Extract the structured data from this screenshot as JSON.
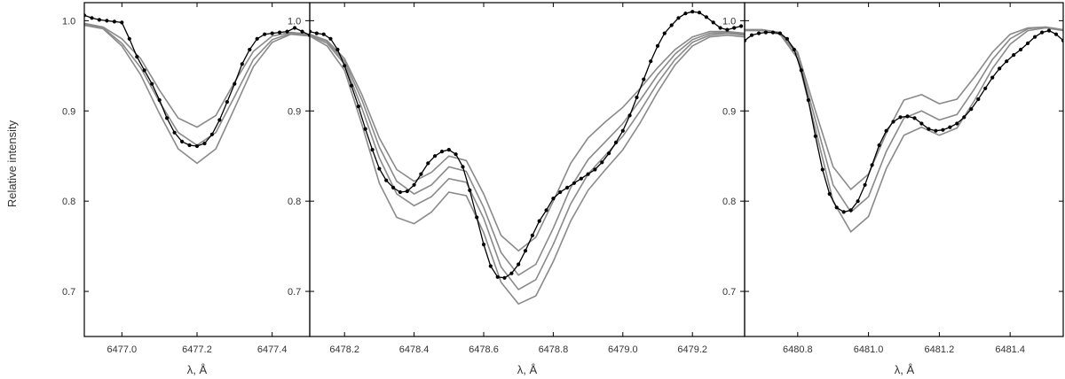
{
  "figure": {
    "ylabel": "Relative intensity",
    "colors": {
      "observed": "#000000",
      "synthetic": "#8a8a8a",
      "frame": "#000000"
    }
  },
  "chart_data": [
    {
      "type": "line",
      "panel": "left",
      "xlabel": "λ, Å",
      "ylabel": "Relative intensity",
      "xlim": [
        6476.9,
        6477.5
      ],
      "ylim": [
        0.65,
        1.02
      ],
      "xticks": [
        "6477.0",
        "6477.2",
        "6477.4"
      ],
      "yticks": [
        "0.7",
        "0.8",
        "0.9",
        "1.0"
      ],
      "series": [
        {
          "role": "observed",
          "markers": true,
          "x": [
            6476.9,
            6476.92,
            6476.94,
            6476.96,
            6476.98,
            6477.0,
            6477.02,
            6477.04,
            6477.06,
            6477.08,
            6477.1,
            6477.12,
            6477.14,
            6477.16,
            6477.18,
            6477.2,
            6477.22,
            6477.24,
            6477.26,
            6477.28,
            6477.3,
            6477.32,
            6477.34,
            6477.36,
            6477.38,
            6477.4,
            6477.42,
            6477.44,
            6477.46,
            6477.48,
            6477.5
          ],
          "y": [
            1.006,
            1.003,
            1.001,
            1.0,
            0.999,
            0.998,
            0.98,
            0.96,
            0.945,
            0.93,
            0.912,
            0.892,
            0.876,
            0.866,
            0.862,
            0.861,
            0.864,
            0.874,
            0.89,
            0.91,
            0.93,
            0.952,
            0.968,
            0.98,
            0.985,
            0.986,
            0.987,
            0.988,
            0.992,
            0.988,
            0.984
          ]
        },
        {
          "role": "synthetic",
          "x": [
            6476.9,
            6476.95,
            6477.0,
            6477.05,
            6477.1,
            6477.15,
            6477.2,
            6477.25,
            6477.3,
            6477.35,
            6477.4,
            6477.45,
            6477.5
          ],
          "y": [
            0.997,
            0.993,
            0.98,
            0.958,
            0.923,
            0.892,
            0.882,
            0.895,
            0.932,
            0.966,
            0.983,
            0.987,
            0.985
          ]
        },
        {
          "role": "synthetic",
          "x": [
            6476.9,
            6476.95,
            6477.0,
            6477.05,
            6477.1,
            6477.15,
            6477.2,
            6477.25,
            6477.3,
            6477.35,
            6477.4,
            6477.45,
            6477.5
          ],
          "y": [
            0.996,
            0.992,
            0.975,
            0.948,
            0.91,
            0.876,
            0.862,
            0.876,
            0.916,
            0.957,
            0.979,
            0.986,
            0.984
          ]
        },
        {
          "role": "synthetic",
          "x": [
            6476.9,
            6476.95,
            6477.0,
            6477.05,
            6477.1,
            6477.15,
            6477.2,
            6477.25,
            6477.3,
            6477.35,
            6477.4,
            6477.45,
            6477.5
          ],
          "y": [
            0.995,
            0.991,
            0.972,
            0.94,
            0.897,
            0.858,
            0.842,
            0.858,
            0.903,
            0.949,
            0.976,
            0.985,
            0.983
          ]
        }
      ]
    },
    {
      "type": "line",
      "panel": "middle",
      "xlabel": "λ, Å",
      "xlim": [
        6478.1,
        6479.35
      ],
      "ylim": [
        0.65,
        1.02
      ],
      "xticks": [
        "6478.2",
        "6478.4",
        "6478.6",
        "6478.8",
        "6479.0",
        "6479.2"
      ],
      "yticks": [
        "0.7",
        "0.8",
        "0.9",
        "1.0"
      ],
      "series": [
        {
          "role": "observed",
          "markers": true,
          "x": [
            6478.1,
            6478.12,
            6478.14,
            6478.16,
            6478.18,
            6478.2,
            6478.22,
            6478.24,
            6478.26,
            6478.28,
            6478.3,
            6478.32,
            6478.34,
            6478.36,
            6478.38,
            6478.4,
            6478.42,
            6478.44,
            6478.46,
            6478.48,
            6478.5,
            6478.52,
            6478.54,
            6478.56,
            6478.58,
            6478.6,
            6478.62,
            6478.64,
            6478.66,
            6478.68,
            6478.7,
            6478.72,
            6478.74,
            6478.76,
            6478.78,
            6478.8,
            6478.82,
            6478.84,
            6478.86,
            6478.88,
            6478.9,
            6478.92,
            6478.94,
            6478.96,
            6478.98,
            6479.0,
            6479.02,
            6479.04,
            6479.06,
            6479.08,
            6479.1,
            6479.12,
            6479.14,
            6479.16,
            6479.18,
            6479.2,
            6479.22,
            6479.24,
            6479.26,
            6479.28,
            6479.3,
            6479.32,
            6479.34
          ],
          "y": [
            0.988,
            0.986,
            0.985,
            0.98,
            0.968,
            0.95,
            0.928,
            0.905,
            0.88,
            0.857,
            0.836,
            0.823,
            0.815,
            0.81,
            0.811,
            0.818,
            0.83,
            0.842,
            0.85,
            0.855,
            0.857,
            0.852,
            0.838,
            0.812,
            0.782,
            0.752,
            0.728,
            0.716,
            0.715,
            0.72,
            0.73,
            0.745,
            0.762,
            0.778,
            0.79,
            0.803,
            0.81,
            0.815,
            0.82,
            0.825,
            0.83,
            0.835,
            0.843,
            0.853,
            0.865,
            0.878,
            0.895,
            0.915,
            0.935,
            0.955,
            0.972,
            0.986,
            0.995,
            1.003,
            1.008,
            1.01,
            1.009,
            1.004,
            0.998,
            0.992,
            0.99,
            0.992,
            0.994
          ]
        },
        {
          "role": "synthetic",
          "x": [
            6478.1,
            6478.15,
            6478.2,
            6478.25,
            6478.3,
            6478.35,
            6478.4,
            6478.45,
            6478.5,
            6478.55,
            6478.6,
            6478.65,
            6478.7,
            6478.75,
            6478.8,
            6478.85,
            6478.9,
            6478.95,
            6479.0,
            6479.05,
            6479.1,
            6479.15,
            6479.2,
            6479.25,
            6479.3,
            6479.35
          ],
          "y": [
            0.985,
            0.978,
            0.958,
            0.918,
            0.87,
            0.835,
            0.822,
            0.832,
            0.85,
            0.845,
            0.808,
            0.762,
            0.745,
            0.76,
            0.8,
            0.842,
            0.87,
            0.888,
            0.904,
            0.925,
            0.948,
            0.968,
            0.982,
            0.988,
            0.988,
            0.986
          ]
        },
        {
          "role": "synthetic",
          "x": [
            6478.1,
            6478.15,
            6478.2,
            6478.25,
            6478.3,
            6478.35,
            6478.4,
            6478.45,
            6478.5,
            6478.55,
            6478.6,
            6478.65,
            6478.7,
            6478.75,
            6478.8,
            6478.85,
            6478.9,
            6478.95,
            6479.0,
            6479.05,
            6479.1,
            6479.15,
            6479.2,
            6479.25,
            6479.3,
            6479.35
          ],
          "y": [
            0.985,
            0.977,
            0.955,
            0.912,
            0.86,
            0.822,
            0.808,
            0.818,
            0.838,
            0.833,
            0.793,
            0.743,
            0.718,
            0.73,
            0.77,
            0.815,
            0.846,
            0.866,
            0.886,
            0.912,
            0.94,
            0.963,
            0.979,
            0.986,
            0.987,
            0.985
          ]
        },
        {
          "role": "synthetic",
          "x": [
            6478.1,
            6478.15,
            6478.2,
            6478.25,
            6478.3,
            6478.35,
            6478.4,
            6478.45,
            6478.5,
            6478.55,
            6478.6,
            6478.65,
            6478.7,
            6478.75,
            6478.8,
            6478.85,
            6478.9,
            6478.95,
            6479.0,
            6479.05,
            6479.1,
            6479.15,
            6479.2,
            6479.25,
            6479.3,
            6479.35
          ],
          "y": [
            0.984,
            0.975,
            0.952,
            0.903,
            0.848,
            0.808,
            0.795,
            0.805,
            0.825,
            0.821,
            0.781,
            0.727,
            0.702,
            0.713,
            0.752,
            0.797,
            0.83,
            0.851,
            0.872,
            0.9,
            0.931,
            0.957,
            0.976,
            0.984,
            0.986,
            0.984
          ]
        },
        {
          "role": "synthetic",
          "x": [
            6478.1,
            6478.15,
            6478.2,
            6478.25,
            6478.3,
            6478.35,
            6478.4,
            6478.45,
            6478.5,
            6478.55,
            6478.6,
            6478.65,
            6478.7,
            6478.75,
            6478.8,
            6478.85,
            6478.9,
            6478.95,
            6479.0,
            6479.05,
            6479.1,
            6479.15,
            6479.2,
            6479.25,
            6479.3,
            6479.35
          ],
          "y": [
            0.983,
            0.972,
            0.945,
            0.885,
            0.82,
            0.782,
            0.775,
            0.788,
            0.81,
            0.806,
            0.765,
            0.71,
            0.686,
            0.695,
            0.733,
            0.778,
            0.812,
            0.835,
            0.857,
            0.887,
            0.921,
            0.951,
            0.972,
            0.982,
            0.984,
            0.982
          ]
        }
      ]
    },
    {
      "type": "line",
      "panel": "right",
      "xlabel": "λ, Å",
      "xlim": [
        6480.65,
        6481.55
      ],
      "ylim": [
        0.65,
        1.02
      ],
      "xticks": [
        "6480.8",
        "6481.0",
        "6481.2",
        "6481.4"
      ],
      "yticks": [
        "0.7",
        "0.8",
        "0.9",
        "1.0"
      ],
      "series": [
        {
          "role": "observed",
          "markers": true,
          "x": [
            6480.65,
            6480.67,
            6480.69,
            6480.71,
            6480.73,
            6480.75,
            6480.77,
            6480.79,
            6480.81,
            6480.83,
            6480.85,
            6480.87,
            6480.89,
            6480.91,
            6480.93,
            6480.95,
            6480.97,
            6480.99,
            6481.01,
            6481.03,
            6481.05,
            6481.07,
            6481.09,
            6481.11,
            6481.13,
            6481.15,
            6481.17,
            6481.19,
            6481.21,
            6481.23,
            6481.25,
            6481.27,
            6481.29,
            6481.31,
            6481.33,
            6481.35,
            6481.37,
            6481.39,
            6481.41,
            6481.43,
            6481.45,
            6481.47,
            6481.49,
            6481.51,
            6481.53,
            6481.55
          ],
          "y": [
            0.978,
            0.984,
            0.986,
            0.987,
            0.987,
            0.986,
            0.98,
            0.968,
            0.945,
            0.912,
            0.872,
            0.835,
            0.808,
            0.793,
            0.788,
            0.79,
            0.8,
            0.818,
            0.84,
            0.862,
            0.878,
            0.888,
            0.893,
            0.894,
            0.892,
            0.886,
            0.88,
            0.878,
            0.879,
            0.882,
            0.886,
            0.893,
            0.902,
            0.913,
            0.925,
            0.937,
            0.947,
            0.955,
            0.962,
            0.968,
            0.975,
            0.982,
            0.987,
            0.989,
            0.985,
            0.978
          ]
        },
        {
          "role": "synthetic",
          "x": [
            6480.65,
            6480.7,
            6480.75,
            6480.8,
            6480.85,
            6480.9,
            6480.95,
            6481.0,
            6481.05,
            6481.1,
            6481.15,
            6481.2,
            6481.25,
            6481.3,
            6481.35,
            6481.4,
            6481.45,
            6481.5,
            6481.55
          ],
          "y": [
            0.99,
            0.99,
            0.987,
            0.965,
            0.9,
            0.838,
            0.813,
            0.83,
            0.875,
            0.912,
            0.918,
            0.908,
            0.913,
            0.938,
            0.965,
            0.985,
            0.992,
            0.993,
            0.99
          ]
        },
        {
          "role": "synthetic",
          "x": [
            6480.65,
            6480.7,
            6480.75,
            6480.8,
            6480.85,
            6480.9,
            6480.95,
            6481.0,
            6481.05,
            6481.1,
            6481.15,
            6481.2,
            6481.25,
            6481.3,
            6481.35,
            6481.4,
            6481.45,
            6481.5,
            6481.55
          ],
          "y": [
            0.99,
            0.99,
            0.986,
            0.962,
            0.89,
            0.818,
            0.788,
            0.805,
            0.855,
            0.892,
            0.9,
            0.89,
            0.896,
            0.925,
            0.957,
            0.98,
            0.991,
            0.993,
            0.99
          ]
        },
        {
          "role": "synthetic",
          "x": [
            6480.65,
            6480.7,
            6480.75,
            6480.8,
            6480.85,
            6480.9,
            6480.95,
            6481.0,
            6481.05,
            6481.1,
            6481.15,
            6481.2,
            6481.25,
            6481.3,
            6481.35,
            6481.4,
            6481.45,
            6481.5,
            6481.55
          ],
          "y": [
            0.989,
            0.989,
            0.985,
            0.958,
            0.88,
            0.8,
            0.766,
            0.783,
            0.836,
            0.873,
            0.882,
            0.873,
            0.881,
            0.912,
            0.947,
            0.974,
            0.989,
            0.992,
            0.989
          ]
        }
      ]
    }
  ]
}
